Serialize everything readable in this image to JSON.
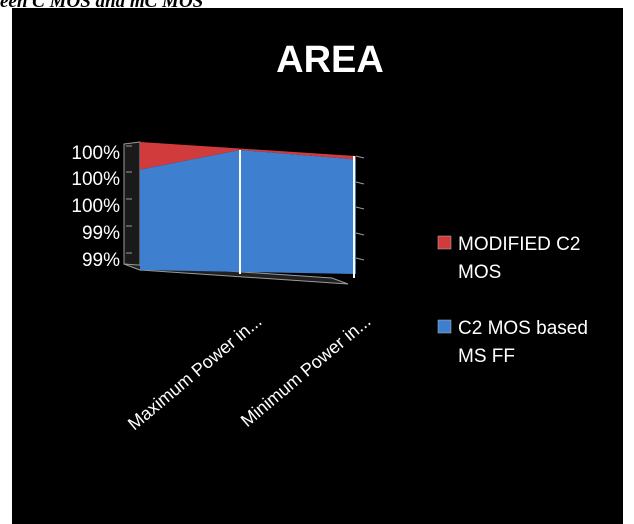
{
  "page": {
    "caption": "een C MOS and mC MOS"
  },
  "chart_data": {
    "type": "area",
    "title": "AREA",
    "categories": [
      "Maximum Power in...",
      "Minimum Power in..."
    ],
    "y_tick_labels": [
      "100%",
      "100%",
      "100%",
      "99%",
      "99%"
    ],
    "ylim": [
      0.99,
      1.0
    ],
    "series": [
      {
        "name": "MODIFIED C2 MOS",
        "values": [
          0.002,
          0.0
        ],
        "color": "#d13b3b"
      },
      {
        "name": "C2 MOS based MS FF",
        "values": [
          0.998,
          1.0
        ],
        "color": "#3f7fd0"
      }
    ],
    "stacked": "percent",
    "view": "3d",
    "legend_position": "right",
    "grid": false,
    "background": "#000000"
  }
}
